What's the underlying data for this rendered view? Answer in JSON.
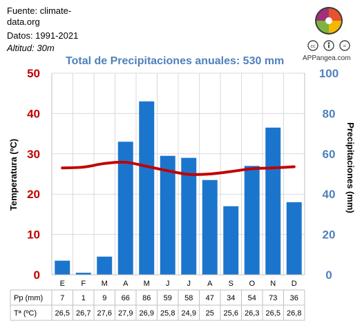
{
  "source": {
    "fuente": "Fuente: climate-data.org",
    "datos": "Datos: 1991-2021",
    "altitud": "Altitud: 30m"
  },
  "brand": "APPangea.com",
  "colors": {
    "bars": "#1c75cd",
    "line": "#c00000",
    "left_axis": "#c00000",
    "right_axis": "#4f81bd"
  },
  "chart_data": {
    "type": "bar",
    "title": "Total de Precipitaciones anuales: 530 mm",
    "categories": [
      "E",
      "F",
      "M",
      "A",
      "M",
      "J",
      "J",
      "A",
      "S",
      "O",
      "N",
      "D"
    ],
    "series": [
      {
        "name": "Pp (mm)",
        "type": "bar",
        "axis": "right",
        "values": [
          7,
          1,
          9,
          66,
          86,
          59,
          58,
          47,
          34,
          54,
          73,
          36
        ]
      },
      {
        "name": "Tª (ºC)",
        "type": "line",
        "axis": "left",
        "values": [
          26.5,
          26.7,
          27.6,
          27.9,
          26.9,
          25.8,
          24.9,
          25,
          25.6,
          26.3,
          26.5,
          26.8
        ]
      }
    ],
    "ylabel_left": "Temperatura (ºC)",
    "ylabel_right": "Precipitaciones (mm)",
    "ylim_left": [
      0,
      50
    ],
    "ylim_right": [
      0,
      100
    ],
    "yticks_left": [
      "0",
      "10",
      "20",
      "30",
      "40",
      "50"
    ],
    "yticks_right": [
      "0",
      "20",
      "40",
      "60",
      "80",
      "100"
    ],
    "grid": true
  },
  "table": {
    "rows": [
      {
        "label": "Pp (mm)",
        "cells": [
          "7",
          "1",
          "9",
          "66",
          "86",
          "59",
          "58",
          "47",
          "34",
          "54",
          "73",
          "36"
        ]
      },
      {
        "label": "Tª (ºC)",
        "cells": [
          "26,5",
          "26,7",
          "27,6",
          "27,9",
          "26,9",
          "25,8",
          "24,9",
          "25",
          "25,6",
          "26,3",
          "26,5",
          "26,8"
        ]
      }
    ]
  }
}
